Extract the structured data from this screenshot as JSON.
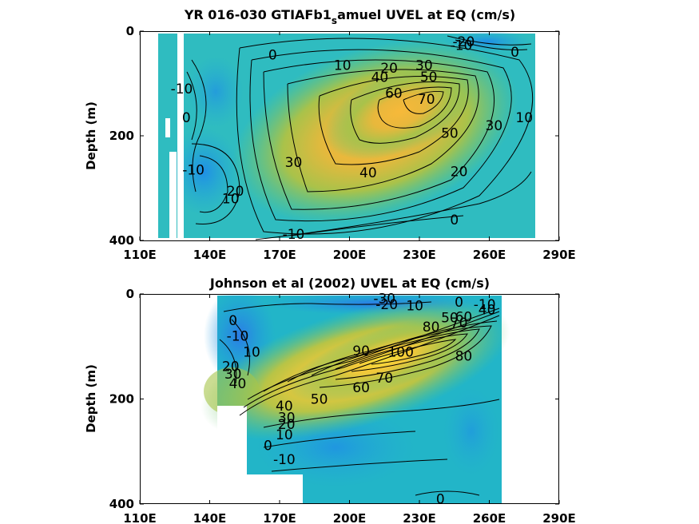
{
  "colors": {
    "scale": [
      "#3b64dc",
      "#1d93e6",
      "#18b7c4",
      "#3fc59a",
      "#8cc95c",
      "#c8c43a",
      "#f0b83a",
      "#f7cf3a"
    ],
    "contour": "#000000"
  },
  "chart_data": [
    {
      "type": "heatmap",
      "title_main": "YR 016-030 GTIAFb1",
      "title_sub": "s",
      "title_rest": "amuel UVEL at EQ (cm/s)",
      "xlabel": "",
      "ylabel": "Depth (m)",
      "xticks": [
        "110E",
        "140E",
        "170E",
        "200E",
        "230E",
        "260E",
        "290E"
      ],
      "yticks": [
        "0",
        "200",
        "400"
      ],
      "xlim": [
        110,
        290
      ],
      "ylim": [
        0,
        400
      ],
      "y_reversed": true,
      "data_extent": {
        "lon": [
          117,
          279
        ],
        "depth": [
          5,
          394
        ]
      },
      "missing_columns": [
        {
          "lon": [
            120,
            122
          ],
          "depth": [
            200,
            394
          ]
        },
        {
          "lon": [
            124,
            128
          ],
          "depth": [
            5,
            394
          ]
        }
      ],
      "core": {
        "lon": 240,
        "depth": 130,
        "max": 75
      },
      "contour_labels": [
        {
          "text": "-20",
          "lon": 249,
          "depth": 20
        },
        {
          "text": "-10",
          "lon": 248,
          "depth": 27
        },
        {
          "text": "0",
          "lon": 271,
          "depth": 40
        },
        {
          "text": "0",
          "lon": 167,
          "depth": 45
        },
        {
          "text": "10",
          "lon": 197,
          "depth": 65
        },
        {
          "text": "20",
          "lon": 217,
          "depth": 70
        },
        {
          "text": "30",
          "lon": 232,
          "depth": 65
        },
        {
          "text": "40",
          "lon": 213,
          "depth": 88
        },
        {
          "text": "50",
          "lon": 234,
          "depth": 87
        },
        {
          "text": "60",
          "lon": 219,
          "depth": 118
        },
        {
          "text": "70",
          "lon": 233,
          "depth": 130
        },
        {
          "text": "-10",
          "lon": 128,
          "depth": 110
        },
        {
          "text": "0",
          "lon": 130,
          "depth": 165
        },
        {
          "text": "50",
          "lon": 243,
          "depth": 195
        },
        {
          "text": "30",
          "lon": 262,
          "depth": 180
        },
        {
          "text": "10",
          "lon": 275,
          "depth": 165
        },
        {
          "text": "30",
          "lon": 176,
          "depth": 250
        },
        {
          "text": "-10",
          "lon": 133,
          "depth": 265
        },
        {
          "text": "40",
          "lon": 208,
          "depth": 270
        },
        {
          "text": "20",
          "lon": 247,
          "depth": 268
        },
        {
          "text": "20",
          "lon": 151,
          "depth": 305
        },
        {
          "text": "10",
          "lon": 149,
          "depth": 320
        },
        {
          "text": "0",
          "lon": 245,
          "depth": 360
        },
        {
          "text": "-10",
          "lon": 176,
          "depth": 388
        }
      ]
    },
    {
      "type": "heatmap",
      "title": "Johnson et al (2002) UVEL at EQ (cm/s)",
      "xlabel": "",
      "ylabel": "Depth (m)",
      "xticks": [
        "110E",
        "140E",
        "170E",
        "200E",
        "230E",
        "260E",
        "290E"
      ],
      "yticks": [
        "0",
        "200",
        "400"
      ],
      "xlim": [
        110,
        290
      ],
      "ylim": [
        0,
        400
      ],
      "y_reversed": true,
      "data_extent": {
        "lon": [
          143,
          265
        ],
        "depth": [
          5,
          400
        ]
      },
      "missing_regions": [
        {
          "lon": [
            143,
            157
          ],
          "depth": [
            215,
            400
          ]
        },
        {
          "lon": [
            157,
            180
          ],
          "depth": [
            345,
            400
          ]
        }
      ],
      "core": {
        "lon": 220,
        "depth": 120,
        "max": 100
      },
      "contour_labels": [
        {
          "text": "-30",
          "lon": 215,
          "depth": 8
        },
        {
          "text": "-20",
          "lon": 216,
          "depth": 20
        },
        {
          "text": "10",
          "lon": 228,
          "depth": 22
        },
        {
          "text": "0",
          "lon": 247,
          "depth": 15
        },
        {
          "text": "-10",
          "lon": 258,
          "depth": 20
        },
        {
          "text": "40",
          "lon": 259,
          "depth": 30
        },
        {
          "text": "50",
          "lon": 243,
          "depth": 45
        },
        {
          "text": "60",
          "lon": 249,
          "depth": 43
        },
        {
          "text": "70",
          "lon": 247,
          "depth": 55
        },
        {
          "text": "80",
          "lon": 235,
          "depth": 62
        },
        {
          "text": "0",
          "lon": 150,
          "depth": 50
        },
        {
          "text": "-10",
          "lon": 152,
          "depth": 80
        },
        {
          "text": "10",
          "lon": 158,
          "depth": 110
        },
        {
          "text": "20",
          "lon": 149,
          "depth": 138
        },
        {
          "text": "30",
          "lon": 150,
          "depth": 152
        },
        {
          "text": "40",
          "lon": 152,
          "depth": 170
        },
        {
          "text": "90",
          "lon": 205,
          "depth": 108
        },
        {
          "text": "100",
          "lon": 222,
          "depth": 110
        },
        {
          "text": "80",
          "lon": 249,
          "depth": 118
        },
        {
          "text": "70",
          "lon": 215,
          "depth": 160
        },
        {
          "text": "60",
          "lon": 205,
          "depth": 178
        },
        {
          "text": "50",
          "lon": 187,
          "depth": 200
        },
        {
          "text": "40",
          "lon": 172,
          "depth": 213
        },
        {
          "text": "30",
          "lon": 173,
          "depth": 235
        },
        {
          "text": "20",
          "lon": 173,
          "depth": 248
        },
        {
          "text": "10",
          "lon": 172,
          "depth": 268
        },
        {
          "text": "0",
          "lon": 165,
          "depth": 288
        },
        {
          "text": "-10",
          "lon": 172,
          "depth": 315
        },
        {
          "text": "0",
          "lon": 239,
          "depth": 390
        }
      ]
    }
  ]
}
